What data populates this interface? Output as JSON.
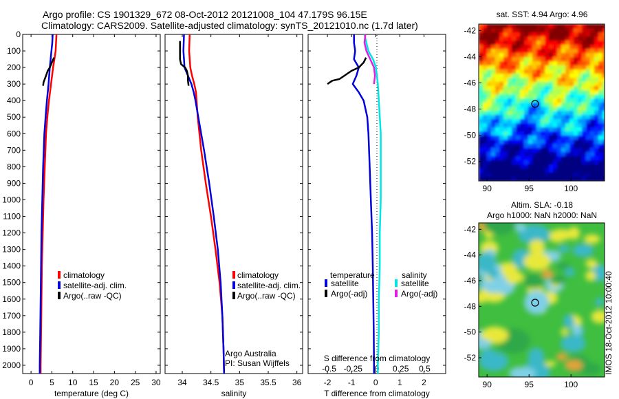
{
  "header": {
    "line1": "Argo profile: CS 1901329_672 08-Oct-2012 20121008_104 47.179S 96.15E",
    "line2": "Climatology: CARS2009. Satellite-adjusted climatology: synTS_20121010.nc (1.7d later)"
  },
  "colors": {
    "climatology": "#ff0000",
    "satellite": "#0000dd",
    "argo": "#000000",
    "satellite_salinity": "#00e5e5",
    "argo_salinity": "#e020e0"
  },
  "depth_axis": {
    "ylim": [
      0,
      2050
    ],
    "ticks": [
      "0",
      "100",
      "200",
      "300",
      "400",
      "500",
      "600",
      "700",
      "800",
      "900",
      "1000",
      "1100",
      "1200",
      "1300",
      "1400",
      "1500",
      "1600",
      "1700",
      "1800",
      "1900",
      "2000"
    ]
  },
  "chart_data": [
    {
      "type": "line",
      "xlabel": "temperature (deg C)",
      "xlim": [
        -2,
        31
      ],
      "xticks": [
        "0",
        "5",
        "10",
        "15",
        "20",
        "25",
        "30"
      ],
      "legend": {
        "placement": "lower-center",
        "entries": [
          "climatology",
          "satellite-adj. clim.",
          "Argo(..raw -QC)"
        ]
      },
      "series": [
        {
          "name": "climatology",
          "depth": [
            0,
            50,
            100,
            150,
            200,
            300,
            400,
            500,
            600,
            800,
            1000,
            1200,
            1400,
            1600,
            1800,
            2000,
            2050
          ],
          "values": [
            6.1,
            6.0,
            5.9,
            5.6,
            5.3,
            4.8,
            4.3,
            3.9,
            3.6,
            3.3,
            3.0,
            2.8,
            2.6,
            2.5,
            2.4,
            2.3,
            2.3
          ]
        },
        {
          "name": "satellite-adj. clim.",
          "depth": [
            0,
            50,
            100,
            150,
            200,
            300,
            400,
            500,
            600,
            800,
            1000,
            1200,
            1400,
            1600,
            1800,
            2000,
            2050
          ],
          "values": [
            5.2,
            5.1,
            4.9,
            4.7,
            4.5,
            4.2,
            3.8,
            3.5,
            3.2,
            2.9,
            2.7,
            2.5,
            2.4,
            2.3,
            2.2,
            2.1,
            2.1
          ]
        },
        {
          "name": "Argo(..raw -QC)",
          "depth": [
            140,
            170,
            200,
            220,
            250,
            270,
            290,
            310
          ],
          "values": [
            5.5,
            5.0,
            4.5,
            4.0,
            3.6,
            3.3,
            3.0,
            2.9
          ]
        }
      ]
    },
    {
      "type": "line",
      "xlabel": "salinity",
      "xlim": [
        33.7,
        36.1
      ],
      "xticks": [
        "34",
        "34.5",
        "35",
        "35.5",
        "36"
      ],
      "legend": {
        "placement": "lower-center",
        "entries": [
          "climatology",
          "satellite-adj. clim.",
          "Argo(..raw -QC)"
        ]
      },
      "annotation": [
        "Argo Australia",
        "PI: Susan Wijffels"
      ],
      "series": [
        {
          "name": "climatology",
          "depth": [
            0,
            100,
            200,
            250,
            300,
            350,
            400,
            500,
            700,
            900,
            1100,
            1300,
            1500,
            1700,
            1900,
            2050
          ],
          "values": [
            34.13,
            34.12,
            34.14,
            34.17,
            34.21,
            34.24,
            34.25,
            34.27,
            34.33,
            34.41,
            34.5,
            34.58,
            34.65,
            34.7,
            34.72,
            34.73
          ]
        },
        {
          "name": "satellite-adj. clim.",
          "depth": [
            0,
            100,
            200,
            250,
            300,
            350,
            400,
            500,
            700,
            900,
            1100,
            1300,
            1500,
            1700,
            1900,
            2050
          ],
          "values": [
            34.03,
            34.02,
            34.04,
            34.1,
            34.16,
            34.2,
            34.23,
            34.28,
            34.38,
            34.47,
            34.55,
            34.62,
            34.67,
            34.7,
            34.72,
            34.73
          ]
        },
        {
          "name": "Argo(..raw -QC)",
          "depth": [
            40,
            80,
            120,
            150,
            180,
            200,
            220,
            250,
            280,
            310
          ],
          "values": [
            33.96,
            33.96,
            33.96,
            33.96,
            33.98,
            34.05,
            34.08,
            34.1,
            34.1,
            34.11
          ]
        }
      ]
    },
    {
      "type": "line",
      "xlabel": "T difference from climatology",
      "xlabel_top": "S difference from climatology",
      "xlim": [
        -2.8,
        2.9
      ],
      "xticks": [
        "-2",
        "-1",
        "0",
        "1",
        "2"
      ],
      "xticks_top": [
        "-0.5",
        "-0.25",
        "0",
        "0.25",
        "0.5"
      ],
      "zero_line": "dotted",
      "legend": {
        "placement": "lower-center",
        "temperature_title": "temperature",
        "salinity_title": "salinity",
        "entries": [
          "satellite",
          "Argo(-adj)",
          "satellite",
          "Argo(-adj)"
        ]
      },
      "series": [
        {
          "name": "satellite",
          "quantity": "temperature",
          "depth": [
            0,
            50,
            100,
            150,
            200,
            250,
            300,
            350,
            400,
            500,
            600,
            800,
            1000,
            1200,
            1400,
            1600,
            1800,
            2000,
            2050
          ],
          "values": [
            -0.9,
            -0.9,
            -0.85,
            -0.9,
            -0.7,
            -0.8,
            -0.95,
            -0.7,
            -0.5,
            -0.35,
            -0.3,
            -0.25,
            -0.2,
            -0.15,
            -0.12,
            -0.1,
            -0.08,
            -0.07,
            -0.07
          ]
        },
        {
          "name": "Argo(-adj)",
          "quantity": "temperature",
          "depth": [
            140,
            170,
            200,
            220,
            250,
            270,
            280,
            290,
            300
          ],
          "values": [
            -0.4,
            -0.5,
            -0.7,
            -1.0,
            -1.3,
            -1.5,
            -1.8,
            -1.9,
            -2.0
          ]
        },
        {
          "name": "satellite",
          "quantity": "salinity",
          "depth": [
            0,
            50,
            100,
            150,
            200,
            250,
            300,
            400,
            600,
            800,
            1000,
            1200,
            1400,
            1600,
            1800,
            2000,
            2050
          ],
          "values": [
            -0.13,
            -0.11,
            -0.09,
            -0.04,
            -0.01,
            0.0,
            0.01,
            0.02,
            0.04,
            0.04,
            0.04,
            0.03,
            0.03,
            0.02,
            0.02,
            0.01,
            0.01
          ]
        },
        {
          "name": "Argo(-adj)",
          "quantity": "salinity",
          "depth": [
            0,
            50,
            100,
            150,
            200,
            250,
            300
          ],
          "values": [
            -0.12,
            -0.13,
            -0.11,
            -0.07,
            -0.03,
            -0.02,
            -0.03
          ]
        }
      ]
    },
    {
      "type": "heatmap",
      "title": "sat. SST: 4.94  Argo: 4.96",
      "xlim": [
        89,
        104
      ],
      "ylim": [
        -53.5,
        -41.5
      ],
      "xticks": [
        "90",
        "95",
        "100"
      ],
      "yticks": [
        "-42",
        "-44",
        "-46",
        "-48",
        "-50",
        "-52"
      ],
      "marker": {
        "lon": 96.15,
        "lat": -47.18
      }
    },
    {
      "type": "heatmap",
      "title": "Altim. SLA: -0.18",
      "subtitle": "Argo h1000: NaN h2000: NaN",
      "xlim": [
        89,
        104
      ],
      "ylim": [
        -53.5,
        -41.5
      ],
      "xticks": [
        "90",
        "95",
        "100"
      ],
      "yticks": [
        "-42",
        "-44",
        "-46",
        "-48",
        "-50",
        "-52"
      ],
      "marker": {
        "lon": 96.15,
        "lat": -47.18
      }
    }
  ],
  "footer": {
    "side_label": "IMOS 18-Oct-2012 10:00:40"
  }
}
